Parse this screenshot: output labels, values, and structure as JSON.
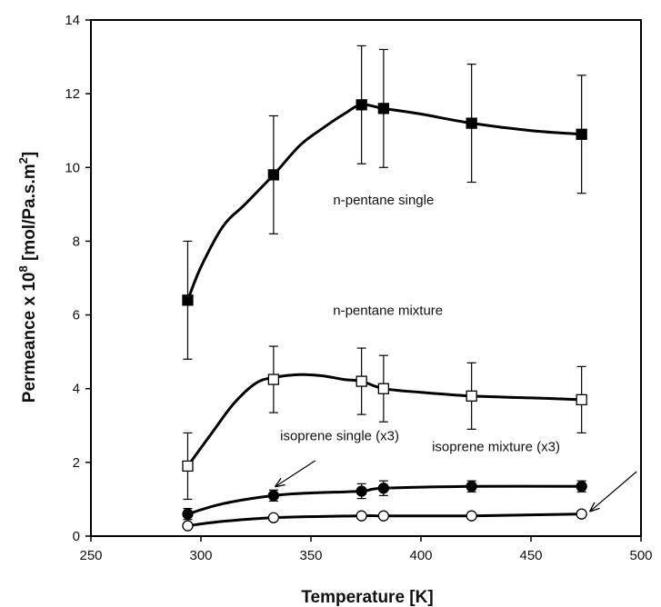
{
  "chart_data": {
    "type": "line",
    "xlabel": "Temperature [K]",
    "ylabel": "Permeance x 10",
    "ylabel_exponent": "8",
    "ylabel_unit": " [mol/Pa.s.m",
    "ylabel_unit_exponent": "2",
    "ylabel_close": "]",
    "xlim": [
      250,
      500
    ],
    "ylim": [
      0,
      14
    ],
    "x_ticks": [
      250,
      300,
      350,
      400,
      450,
      500
    ],
    "y_ticks": [
      0,
      2,
      4,
      6,
      8,
      10,
      12,
      14
    ],
    "grid": false,
    "series": [
      {
        "name": "n-pentane single",
        "marker": "square",
        "fill": "#000000",
        "x": [
          294,
          333,
          373,
          383,
          423,
          473
        ],
        "values": [
          6.4,
          9.8,
          11.7,
          11.6,
          11.2,
          10.9
        ],
        "err_low": [
          4.8,
          8.2,
          10.1,
          10.0,
          9.6,
          9.3
        ],
        "err_high": [
          8.0,
          11.4,
          13.3,
          13.2,
          12.8,
          12.5
        ],
        "curve": [
          [
            294,
            6.4
          ],
          [
            300,
            7.3
          ],
          [
            310,
            8.4
          ],
          [
            320,
            9.0
          ],
          [
            333,
            9.8
          ],
          [
            345,
            10.6
          ],
          [
            355,
            11.05
          ],
          [
            365,
            11.45
          ],
          [
            373,
            11.7
          ],
          [
            383,
            11.6
          ],
          [
            400,
            11.45
          ],
          [
            423,
            11.2
          ],
          [
            450,
            11.0
          ],
          [
            473,
            10.9
          ]
        ]
      },
      {
        "name": "n-pentane mixture",
        "marker": "square",
        "fill": "#ffffff",
        "x": [
          294,
          333,
          373,
          383,
          423,
          473
        ],
        "values": [
          1.9,
          4.25,
          4.2,
          4.0,
          3.8,
          3.7
        ],
        "err_low": [
          1.0,
          3.35,
          3.3,
          3.1,
          2.9,
          2.8
        ],
        "err_high": [
          2.8,
          5.15,
          5.1,
          4.9,
          4.7,
          4.6
        ],
        "curve": [
          [
            294,
            1.9
          ],
          [
            305,
            2.8
          ],
          [
            315,
            3.6
          ],
          [
            325,
            4.15
          ],
          [
            333,
            4.3
          ],
          [
            345,
            4.38
          ],
          [
            355,
            4.35
          ],
          [
            365,
            4.25
          ],
          [
            373,
            4.2
          ],
          [
            383,
            4.0
          ],
          [
            400,
            3.9
          ],
          [
            423,
            3.8
          ],
          [
            450,
            3.75
          ],
          [
            473,
            3.7
          ]
        ]
      },
      {
        "name": "isoprene single (x3)",
        "marker": "circle",
        "fill": "#000000",
        "x": [
          294,
          333,
          373,
          383,
          423,
          473
        ],
        "values": [
          0.6,
          1.1,
          1.22,
          1.3,
          1.35,
          1.35
        ],
        "err_low": [
          0.45,
          0.95,
          1.02,
          1.1,
          1.2,
          1.2
        ],
        "err_high": [
          0.75,
          1.25,
          1.42,
          1.5,
          1.5,
          1.5
        ],
        "curve": [
          [
            294,
            0.6
          ],
          [
            310,
            0.88
          ],
          [
            333,
            1.1
          ],
          [
            350,
            1.17
          ],
          [
            373,
            1.22
          ],
          [
            383,
            1.3
          ],
          [
            423,
            1.35
          ],
          [
            473,
            1.35
          ]
        ]
      },
      {
        "name": "isoprene mixture (x3)",
        "marker": "circle",
        "fill": "#ffffff",
        "x": [
          294,
          333,
          373,
          383,
          423,
          473
        ],
        "values": [
          0.28,
          0.5,
          0.55,
          0.55,
          0.55,
          0.6
        ],
        "curve": [
          [
            294,
            0.28
          ],
          [
            310,
            0.4
          ],
          [
            333,
            0.5
          ],
          [
            373,
            0.55
          ],
          [
            383,
            0.55
          ],
          [
            423,
            0.55
          ],
          [
            473,
            0.6
          ]
        ]
      }
    ],
    "annotations": [
      {
        "text": "n-pentane single",
        "x": 383,
        "y": 9.0,
        "anchor": "middle"
      },
      {
        "text": "n-pentane mixture",
        "x": 385,
        "y": 6.0,
        "anchor": "middle"
      },
      {
        "text": "isoprene single (x3)",
        "x": 336,
        "y": 2.6,
        "anchor": "start",
        "arrow_from": [
          352,
          2.05
        ],
        "arrow_to": [
          334,
          1.35
        ]
      },
      {
        "text": "isoprene mixture (x3)",
        "x": 405,
        "y": 2.3,
        "anchor": "start",
        "arrow_from": [
          498,
          1.75
        ],
        "arrow_to": [
          477,
          0.68
        ]
      }
    ]
  }
}
